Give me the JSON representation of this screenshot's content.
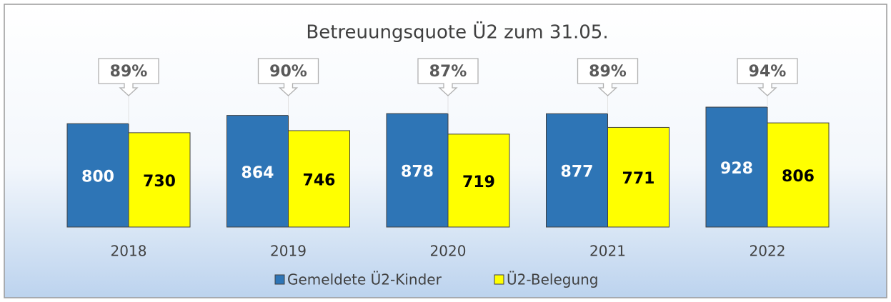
{
  "chart_data": {
    "type": "bar",
    "title": "Betreuungsquote Ü2 zum 31.05.",
    "categories": [
      "2018",
      "2019",
      "2020",
      "2021",
      "2022"
    ],
    "series": [
      {
        "name": "Gemeldete Ü2-Kinder",
        "color": "#2e75b6",
        "values": [
          800,
          864,
          878,
          877,
          928
        ]
      },
      {
        "name": "Ü2-Belegung",
        "color": "#ffff00",
        "values": [
          730,
          746,
          719,
          771,
          806
        ]
      }
    ],
    "callouts": {
      "values": [
        89,
        90,
        87,
        89,
        94
      ],
      "value_labels": [
        "89%",
        "90%",
        "87%",
        "89%",
        "94%"
      ]
    },
    "ylim": [
      0,
      1000
    ],
    "legend": "bottom"
  }
}
